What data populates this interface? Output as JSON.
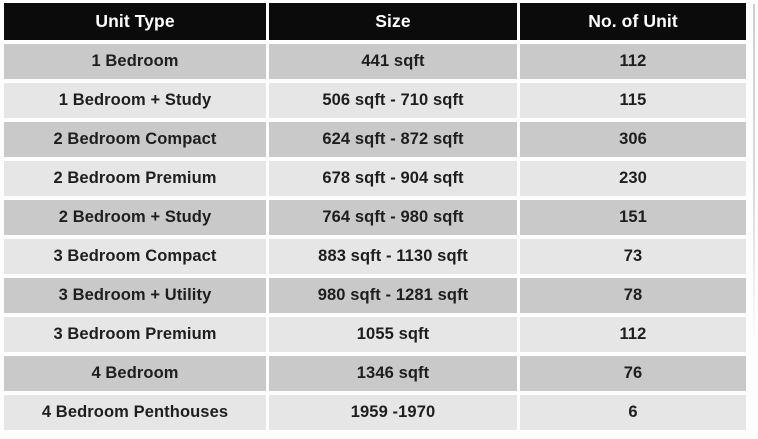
{
  "chart_data": {
    "type": "table",
    "title": "",
    "columns": [
      "Unit Type",
      "Size",
      "No. of Unit"
    ],
    "rows": [
      [
        "1 Bedroom",
        "441 sqft",
        "112"
      ],
      [
        "1 Bedroom + Study",
        "506 sqft - 710 sqft",
        "115"
      ],
      [
        "2 Bedroom Compact",
        "624 sqft - 872 sqft",
        "306"
      ],
      [
        "2 Bedroom Premium",
        "678 sqft - 904 sqft",
        "230"
      ],
      [
        "2 Bedroom + Study",
        "764 sqft - 980 sqft",
        "151"
      ],
      [
        "3 Bedroom Compact",
        "883 sqft - 1130 sqft",
        "73"
      ],
      [
        "3 Bedroom + Utility",
        "980 sqft - 1281 sqft",
        "78"
      ],
      [
        "3 Bedroom Premium",
        "1055 sqft",
        "112"
      ],
      [
        "4 Bedroom",
        "1346 sqft",
        "76"
      ],
      [
        "4 Bedroom Penthouses",
        "1959 -1970",
        "6"
      ]
    ],
    "layout_hints": {
      "header_style": "solid black bar with white text",
      "row_striping": "alternating dark/light gray starting dark",
      "alignment": "all cells centered"
    }
  },
  "colors": {
    "header_bg": "#0b0b0b",
    "header_text": "#ffffff",
    "row_dark": "#c9c9c9",
    "row_light": "#e6e6e6",
    "body_text": "#1e1e1e",
    "page_bg": "#fdfdfd"
  }
}
